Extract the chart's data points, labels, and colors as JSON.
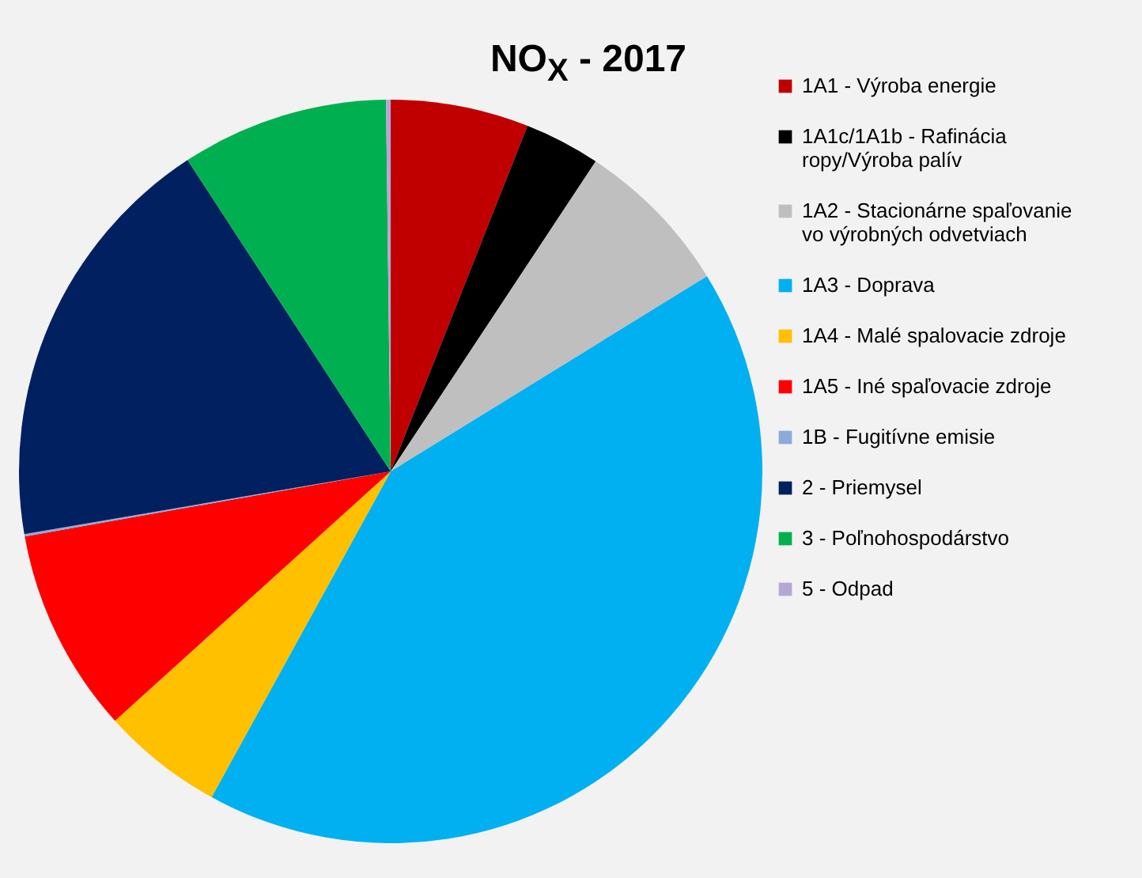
{
  "chart_data": {
    "type": "pie",
    "title": "NO$_{X}$ - 2017",
    "categories": [
      "1A1 - Výroba energie",
      "1A1c/1A1b - Rafinácia ropy/Výroba palív",
      "1A2 - Stacionárne spaľovanie vo výrobných odvetviach",
      "1A3 - Doprava",
      "1A4 - Malé spalovacie zdroje",
      "1A5 - Iné spaľovacie zdroje",
      "1B - Fugitívne emisie",
      "2 - Priemysel",
      "3 - Poľnohospodárstvo",
      "5 - Odpad"
    ],
    "values": [
      6.0,
      3.3,
      6.9,
      41.8,
      5.3,
      8.9,
      0.1,
      18.5,
      9.0,
      0.2
    ],
    "colors": [
      "#c00000",
      "#000000",
      "#bfbfbf",
      "#00b0f0",
      "#ffc000",
      "#ff0000",
      "#8eaadb",
      "#002060",
      "#00b050",
      "#b4a7d6"
    ],
    "legend": "right"
  }
}
